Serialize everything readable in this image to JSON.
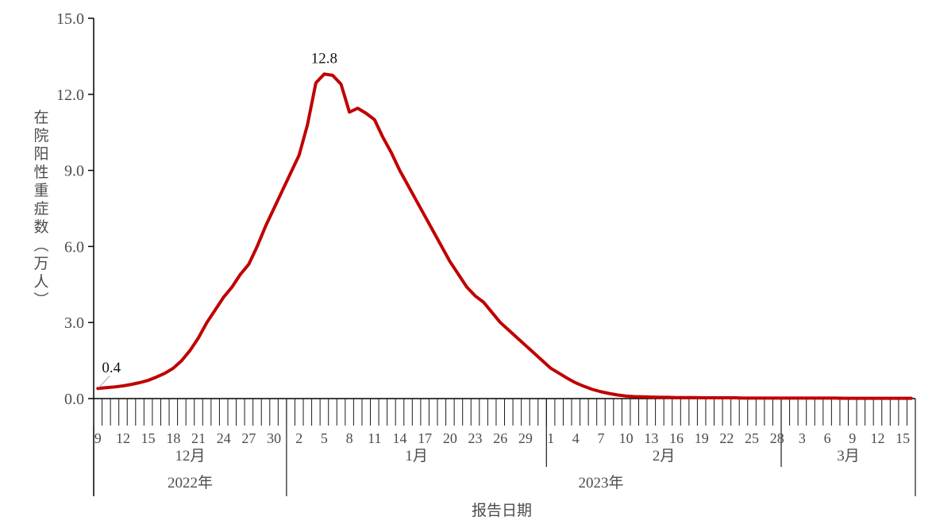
{
  "chart_data": {
    "type": "line",
    "title": "",
    "xlabel": "报告日期",
    "ylabel": "在院阳性重症数（万人）",
    "ylim": [
      0,
      15
    ],
    "yticks": [
      0,
      3,
      6,
      9,
      12,
      15
    ],
    "ytick_labels": [
      "0.0",
      "3.0",
      "6.0",
      "9.0",
      "12.0",
      "15.0"
    ],
    "grid": "off",
    "legend": "none",
    "x_axis": {
      "months": [
        {
          "label": "12月",
          "year": "2022年",
          "first_day": 9,
          "last_day": 31,
          "labeled_days": [
            9,
            12,
            15,
            18,
            21,
            24,
            27,
            30
          ]
        },
        {
          "label": "1月",
          "year": "2023年",
          "first_day": 1,
          "last_day": 31,
          "labeled_days": [
            2,
            5,
            8,
            11,
            14,
            17,
            20,
            23,
            26,
            29
          ]
        },
        {
          "label": "2月",
          "year": "2023年",
          "first_day": 1,
          "last_day": 28,
          "labeled_days": [
            1,
            4,
            7,
            10,
            13,
            16,
            19,
            22,
            25,
            28
          ]
        },
        {
          "label": "3月",
          "year": "2023年",
          "first_day": 1,
          "last_day": 16,
          "labeled_days": [
            3,
            6,
            9,
            12,
            15
          ]
        }
      ],
      "years": [
        "2022年",
        "2023年"
      ]
    },
    "dates": [
      "2022-12-09",
      "2022-12-10",
      "2022-12-11",
      "2022-12-12",
      "2022-12-13",
      "2022-12-14",
      "2022-12-15",
      "2022-12-16",
      "2022-12-17",
      "2022-12-18",
      "2022-12-19",
      "2022-12-20",
      "2022-12-21",
      "2022-12-22",
      "2022-12-23",
      "2022-12-24",
      "2022-12-25",
      "2022-12-26",
      "2022-12-27",
      "2022-12-28",
      "2022-12-29",
      "2022-12-30",
      "2022-12-31",
      "2023-01-01",
      "2023-01-02",
      "2023-01-03",
      "2023-01-04",
      "2023-01-05",
      "2023-01-06",
      "2023-01-07",
      "2023-01-08",
      "2023-01-09",
      "2023-01-10",
      "2023-01-11",
      "2023-01-12",
      "2023-01-13",
      "2023-01-14",
      "2023-01-15",
      "2023-01-16",
      "2023-01-17",
      "2023-01-18",
      "2023-01-19",
      "2023-01-20",
      "2023-01-21",
      "2023-01-22",
      "2023-01-23",
      "2023-01-24",
      "2023-01-25",
      "2023-01-26",
      "2023-01-27",
      "2023-01-28",
      "2023-01-29",
      "2023-01-30",
      "2023-01-31",
      "2023-02-01",
      "2023-02-02",
      "2023-02-03",
      "2023-02-04",
      "2023-02-05",
      "2023-02-06",
      "2023-02-07",
      "2023-02-08",
      "2023-02-09",
      "2023-02-10",
      "2023-02-11",
      "2023-02-12",
      "2023-02-13",
      "2023-02-14",
      "2023-02-15",
      "2023-02-16",
      "2023-02-17",
      "2023-02-18",
      "2023-02-19",
      "2023-02-20",
      "2023-02-21",
      "2023-02-22",
      "2023-02-23",
      "2023-02-24",
      "2023-02-25",
      "2023-02-26",
      "2023-02-27",
      "2023-02-28",
      "2023-03-01",
      "2023-03-02",
      "2023-03-03",
      "2023-03-04",
      "2023-03-05",
      "2023-03-06",
      "2023-03-07",
      "2023-03-08",
      "2023-03-09",
      "2023-03-10",
      "2023-03-11",
      "2023-03-12",
      "2023-03-13",
      "2023-03-14",
      "2023-03-15",
      "2023-03-16"
    ],
    "series": [
      {
        "name": "在院阳性重症数",
        "values": [
          0.4,
          0.43,
          0.46,
          0.5,
          0.56,
          0.63,
          0.72,
          0.85,
          1.0,
          1.2,
          1.5,
          1.9,
          2.4,
          3.0,
          3.5,
          4.0,
          4.4,
          4.9,
          5.3,
          6.0,
          6.8,
          7.5,
          8.2,
          8.9,
          9.6,
          10.8,
          12.45,
          12.8,
          12.75,
          12.4,
          11.3,
          11.45,
          11.25,
          11.0,
          10.3,
          9.7,
          9.0,
          8.4,
          7.8,
          7.2,
          6.6,
          6.0,
          5.4,
          4.9,
          4.4,
          4.05,
          3.8,
          3.4,
          3.0,
          2.7,
          2.4,
          2.1,
          1.8,
          1.5,
          1.2,
          1.0,
          0.8,
          0.62,
          0.48,
          0.36,
          0.27,
          0.2,
          0.14,
          0.1,
          0.08,
          0.07,
          0.06,
          0.05,
          0.05,
          0.04,
          0.04,
          0.04,
          0.03,
          0.03,
          0.03,
          0.03,
          0.03,
          0.02,
          0.02,
          0.02,
          0.02,
          0.02,
          0.02,
          0.02,
          0.02,
          0.02,
          0.02,
          0.02,
          0.02,
          0.01,
          0.01,
          0.01,
          0.01,
          0.01,
          0.01,
          0.01,
          0.01,
          0.01
        ]
      }
    ],
    "annotations": [
      {
        "text": "0.4",
        "date": "2022-12-09",
        "value": 0.4,
        "leader": true
      },
      {
        "text": "12.8",
        "date": "2023-01-05",
        "value": 12.8,
        "leader": false
      }
    ],
    "colors": {
      "line": "#c00000",
      "axis": "#000000",
      "tick": "#1a1a1a",
      "label": "#4c4c4c",
      "annotation": "#111111",
      "leader": "#a6a6a6",
      "background": "#ffffff"
    }
  }
}
